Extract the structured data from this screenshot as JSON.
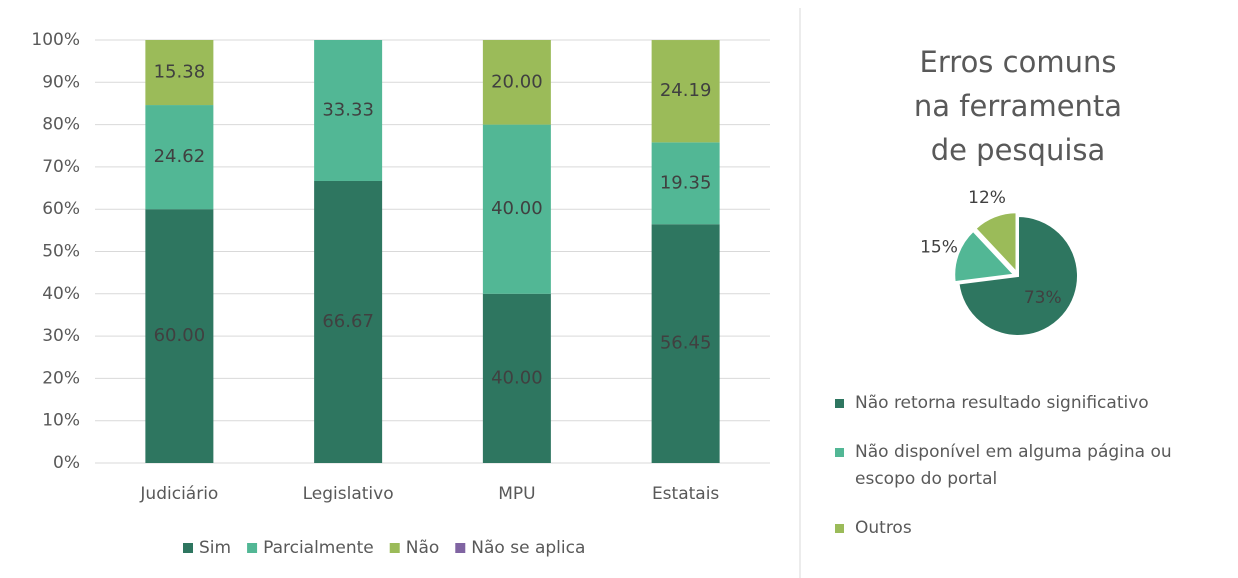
{
  "chart_data": [
    {
      "type": "bar",
      "stacked": true,
      "categories": [
        "Judiciário",
        "Legislativo",
        "MPU",
        "Estatais"
      ],
      "series": [
        {
          "name": "Sim",
          "color": "#2e7660",
          "values": [
            60.0,
            66.67,
            40.0,
            56.45
          ],
          "value_labels": [
            "60.00",
            "66.67",
            "40.00",
            "56.45"
          ]
        },
        {
          "name": "Parcialmente",
          "color": "#52b795",
          "values": [
            24.62,
            33.33,
            40.0,
            19.35
          ],
          "value_labels": [
            "24.62",
            "33.33",
            "40.00",
            "19.35"
          ]
        },
        {
          "name": "Não",
          "color": "#9bbb59",
          "values": [
            15.38,
            0,
            20.0,
            24.19
          ],
          "value_labels": [
            "15.38",
            null,
            "20.00",
            "24.19"
          ]
        },
        {
          "name": "Não se aplica",
          "color": "#8064a2",
          "values": [
            0,
            0,
            0,
            0
          ]
        }
      ],
      "ylim": [
        0,
        100
      ],
      "yticks": [
        {
          "value": 0,
          "label": "0%"
        },
        {
          "value": 10,
          "label": "10%"
        },
        {
          "value": 20,
          "label": "20%"
        },
        {
          "value": 30,
          "label": "30%"
        },
        {
          "value": 40,
          "label": "40%"
        },
        {
          "value": 50,
          "label": "50%"
        },
        {
          "value": 60,
          "label": "60%"
        },
        {
          "value": 70,
          "label": "70%"
        },
        {
          "value": 80,
          "label": "80%"
        },
        {
          "value": 90,
          "label": "90%"
        },
        {
          "value": 100,
          "label": "100%"
        }
      ],
      "grid": true,
      "legend": "bottom"
    },
    {
      "type": "pie",
      "title": "Erros comuns na ferramenta de pesquisa",
      "categories": [
        "Não retorna resultado significativo",
        "Não disponível em alguma página ou escopo do portal",
        "Outros"
      ],
      "values": [
        73,
        15,
        12
      ],
      "value_labels": [
        "73%",
        "15%",
        "12%"
      ],
      "colors": [
        "#2e7660",
        "#52b795",
        "#9bbb59"
      ],
      "legend": "bottom"
    }
  ]
}
